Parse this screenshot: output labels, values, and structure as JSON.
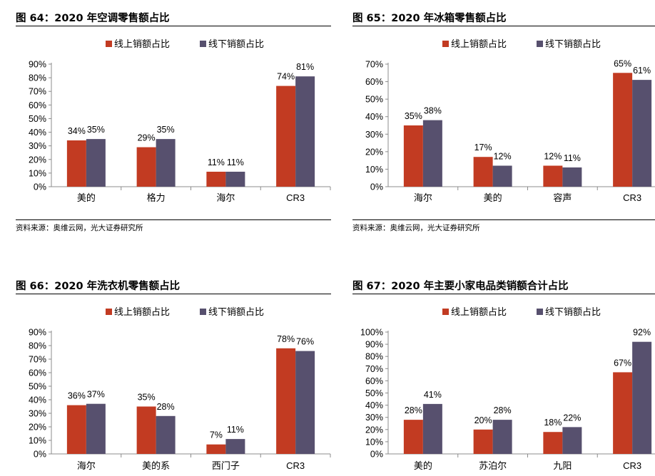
{
  "colors": {
    "online": "#c23b22",
    "offline": "#57506e",
    "axis": "#8c8c8c"
  },
  "source_text": "资料来源：奥维云网，光大证券研究所",
  "charts": [
    {
      "title": "图 64：2020 年空调零售额占比",
      "chart_data": {
        "type": "bar",
        "categories": [
          "美的",
          "格力",
          "海尔",
          "CR3"
        ],
        "series": [
          {
            "name": "线上销额占比",
            "values": [
              34,
              29,
              11,
              74
            ]
          },
          {
            "name": "线下销额占比",
            "values": [
              35,
              35,
              11,
              81
            ]
          }
        ],
        "ylim": [
          0,
          90
        ],
        "ytick_step": 10,
        "yticks": [
          "0%",
          "10%",
          "20%",
          "30%",
          "40%",
          "50%",
          "60%",
          "70%",
          "80%",
          "90%"
        ],
        "legend": "top-center"
      }
    },
    {
      "title": "图 65：2020 年冰箱零售额占比",
      "chart_data": {
        "type": "bar",
        "categories": [
          "海尔",
          "美的",
          "容声",
          "CR3"
        ],
        "series": [
          {
            "name": "线上销额占比",
            "values": [
              35,
              17,
              12,
              65
            ]
          },
          {
            "name": "线下销额占比",
            "values": [
              38,
              12,
              11,
              61
            ]
          }
        ],
        "ylim": [
          0,
          70
        ],
        "ytick_step": 10,
        "yticks": [
          "0%",
          "10%",
          "20%",
          "30%",
          "40%",
          "50%",
          "60%",
          "70%"
        ],
        "legend": "top-center"
      }
    },
    {
      "title": "图 66：2020 年洗衣机零售额占比",
      "chart_data": {
        "type": "bar",
        "categories": [
          "海尔",
          "美的系",
          "西门子",
          "CR3"
        ],
        "series": [
          {
            "name": "线上销额占比",
            "values": [
              36,
              35,
              7,
              78
            ]
          },
          {
            "name": "线下销额占比",
            "values": [
              37,
              28,
              11,
              76
            ]
          }
        ],
        "ylim": [
          0,
          90
        ],
        "ytick_step": 10,
        "yticks": [
          "0%",
          "10%",
          "20%",
          "30%",
          "40%",
          "50%",
          "60%",
          "70%",
          "80%",
          "90%"
        ],
        "legend": "top-center"
      }
    },
    {
      "title": "图 67：2020 年主要小家电品类销额合计占比",
      "chart_data": {
        "type": "bar",
        "categories": [
          "美的",
          "苏泊尔",
          "九阳",
          "CR3"
        ],
        "series": [
          {
            "name": "线上销额占比",
            "values": [
              28,
              20,
              18,
              67
            ]
          },
          {
            "name": "线下销额占比",
            "values": [
              41,
              28,
              22,
              92
            ]
          }
        ],
        "ylim": [
          0,
          100
        ],
        "ytick_step": 10,
        "yticks": [
          "0%",
          "10%",
          "20%",
          "30%",
          "40%",
          "50%",
          "60%",
          "70%",
          "80%",
          "90%",
          "100%"
        ],
        "legend": "top-center"
      }
    }
  ]
}
